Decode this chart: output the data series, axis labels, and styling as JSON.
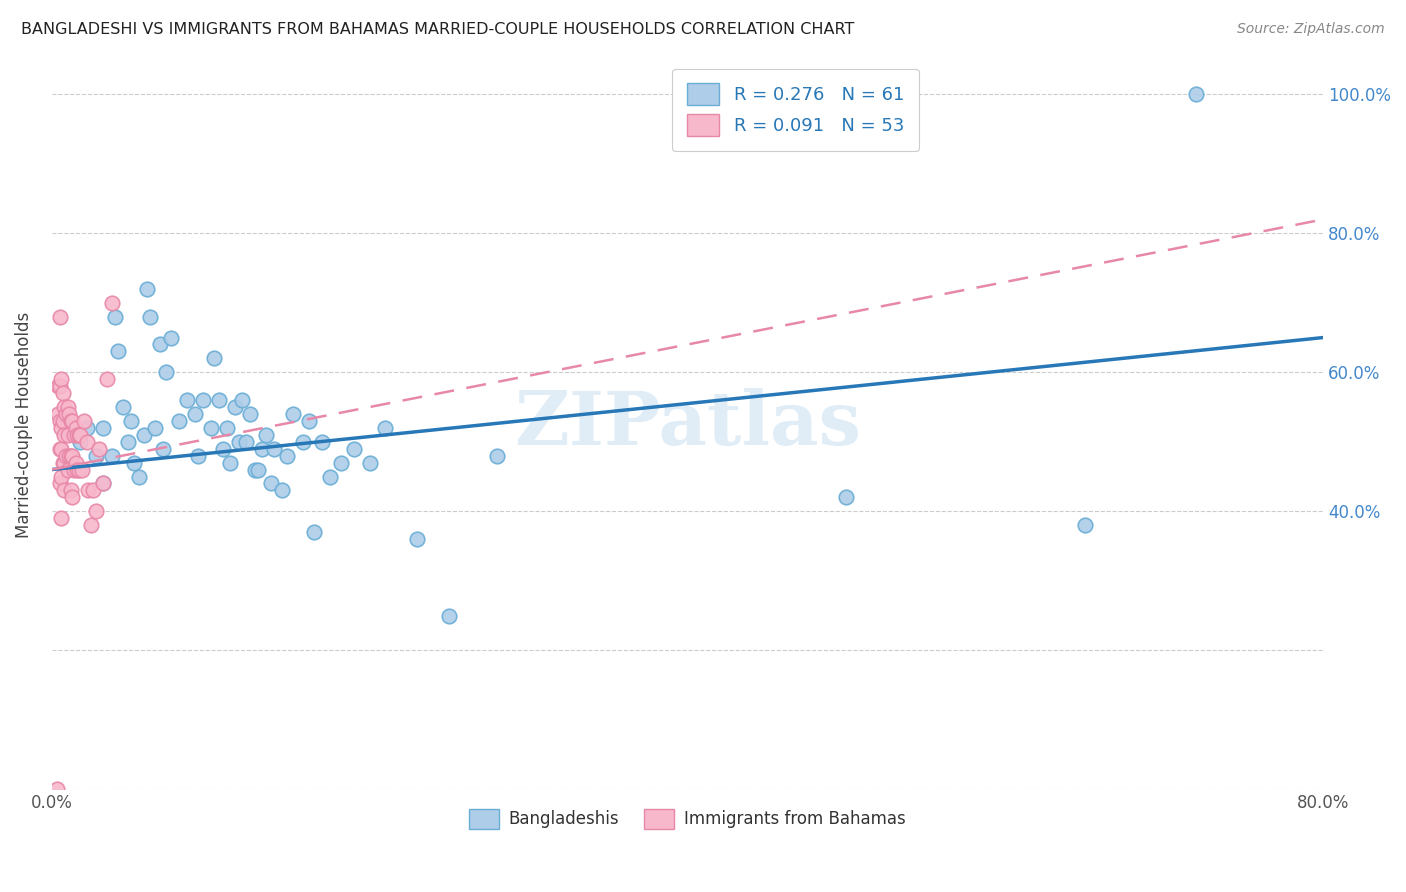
{
  "title": "BANGLADESHI VS IMMIGRANTS FROM BAHAMAS MARRIED-COUPLE HOUSEHOLDS CORRELATION CHART",
  "source": "Source: ZipAtlas.com",
  "ylabel": "Married-couple Households",
  "watermark": "ZIPatlas",
  "legend1_label": "R = 0.276   N = 61",
  "legend2_label": "R = 0.091   N = 53",
  "legend_bottom1": "Bangladeshis",
  "legend_bottom2": "Immigrants from Bahamas",
  "blue_fill": "#aecde8",
  "blue_edge": "#6aaed6",
  "blue_line": "#2878b8",
  "pink_fill": "#f8b8cc",
  "pink_edge": "#e888a8",
  "pink_line": "#e08898",
  "xlim": [
    0.0,
    0.8
  ],
  "ylim": [
    0.0,
    1.05
  ],
  "blue_scatter_x": [
    0.018,
    0.022,
    0.028,
    0.032,
    0.032,
    0.038,
    0.04,
    0.042,
    0.045,
    0.048,
    0.05,
    0.052,
    0.055,
    0.058,
    0.06,
    0.062,
    0.065,
    0.068,
    0.07,
    0.072,
    0.075,
    0.08,
    0.085,
    0.09,
    0.092,
    0.095,
    0.1,
    0.102,
    0.105,
    0.108,
    0.11,
    0.112,
    0.115,
    0.118,
    0.12,
    0.122,
    0.125,
    0.128,
    0.13,
    0.132,
    0.135,
    0.138,
    0.14,
    0.145,
    0.148,
    0.152,
    0.158,
    0.162,
    0.165,
    0.17,
    0.175,
    0.182,
    0.19,
    0.2,
    0.21,
    0.23,
    0.25,
    0.28,
    0.5,
    0.65,
    0.72
  ],
  "blue_scatter_y": [
    0.5,
    0.52,
    0.48,
    0.52,
    0.44,
    0.48,
    0.68,
    0.63,
    0.55,
    0.5,
    0.53,
    0.47,
    0.45,
    0.51,
    0.72,
    0.68,
    0.52,
    0.64,
    0.49,
    0.6,
    0.65,
    0.53,
    0.56,
    0.54,
    0.48,
    0.56,
    0.52,
    0.62,
    0.56,
    0.49,
    0.52,
    0.47,
    0.55,
    0.5,
    0.56,
    0.5,
    0.54,
    0.46,
    0.46,
    0.49,
    0.51,
    0.44,
    0.49,
    0.43,
    0.48,
    0.54,
    0.5,
    0.53,
    0.37,
    0.5,
    0.45,
    0.47,
    0.49,
    0.47,
    0.52,
    0.36,
    0.25,
    0.48,
    0.42,
    0.38,
    1.0
  ],
  "pink_scatter_x": [
    0.003,
    0.004,
    0.004,
    0.005,
    0.005,
    0.005,
    0.005,
    0.005,
    0.006,
    0.006,
    0.006,
    0.006,
    0.006,
    0.007,
    0.007,
    0.007,
    0.008,
    0.008,
    0.008,
    0.008,
    0.009,
    0.009,
    0.01,
    0.01,
    0.01,
    0.011,
    0.011,
    0.012,
    0.012,
    0.012,
    0.013,
    0.013,
    0.013,
    0.014,
    0.014,
    0.015,
    0.015,
    0.016,
    0.016,
    0.017,
    0.017,
    0.018,
    0.019,
    0.02,
    0.022,
    0.023,
    0.025,
    0.026,
    0.028,
    0.03,
    0.032,
    0.035,
    0.038
  ],
  "pink_scatter_y": [
    0.0,
    0.58,
    0.54,
    0.68,
    0.58,
    0.53,
    0.49,
    0.44,
    0.59,
    0.52,
    0.49,
    0.45,
    0.39,
    0.57,
    0.53,
    0.47,
    0.55,
    0.51,
    0.47,
    0.43,
    0.54,
    0.48,
    0.55,
    0.51,
    0.46,
    0.54,
    0.48,
    0.53,
    0.48,
    0.43,
    0.53,
    0.48,
    0.42,
    0.51,
    0.46,
    0.52,
    0.47,
    0.51,
    0.46,
    0.51,
    0.46,
    0.51,
    0.46,
    0.53,
    0.5,
    0.43,
    0.38,
    0.43,
    0.4,
    0.49,
    0.44,
    0.59,
    0.7
  ],
  "blue_line_x0": 0.0,
  "blue_line_x1": 0.8,
  "blue_line_y0": 0.46,
  "blue_line_y1": 0.65,
  "pink_line_x0": 0.0,
  "pink_line_x1": 0.8,
  "pink_line_y0": 0.46,
  "pink_line_y1": 0.82
}
